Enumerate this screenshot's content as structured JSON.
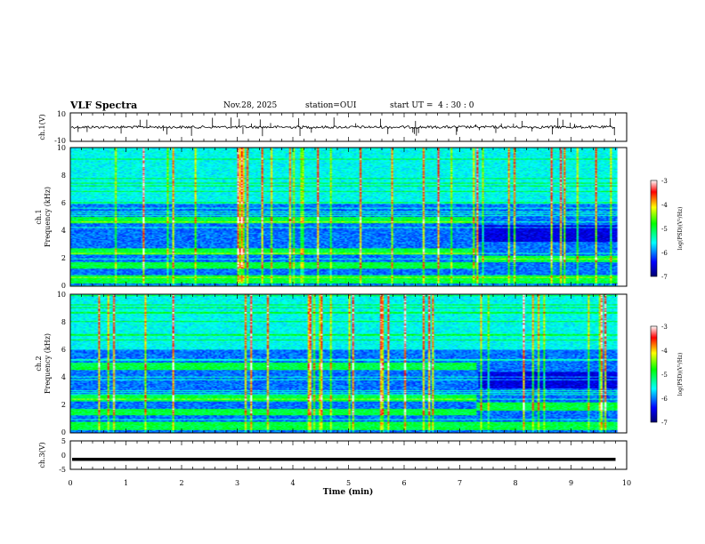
{
  "header": {
    "title": "VLF Spectra",
    "date": "Nov.28, 2025",
    "station": "station=OUI",
    "start_ut": "start UT =  4 : 30 : 0"
  },
  "chart_data": [
    {
      "type": "line",
      "id": "ch1_waveform",
      "ylabel": "ch.1(V)",
      "ylim": [
        -10,
        10
      ],
      "yticks": [
        "10",
        "-10"
      ],
      "baseline_value": 0
    },
    {
      "type": "heatmap",
      "id": "ch1_spectrum",
      "ylabel": "ch.1\nFrequency (kHz)",
      "ylim": [
        0,
        10
      ],
      "yticks": [
        "0",
        "2",
        "4",
        "6",
        "8",
        "10"
      ],
      "colorbar": {
        "label": "log(PSD)(V²/Hz)",
        "range": [
          -7,
          -3
        ],
        "ticks": [
          "-3",
          "-4",
          "-5",
          "-6",
          "-7"
        ]
      },
      "change_time_min": 7.3,
      "bands_before_kHz": [
        [
          0.2,
          0.8
        ],
        [
          1.3,
          1.8
        ],
        [
          2.3,
          2.8
        ],
        [
          4.6,
          5.0
        ]
      ],
      "bands_after_kHz": [
        [
          0.2,
          0.8
        ],
        [
          1.8,
          2.2
        ]
      ]
    },
    {
      "type": "heatmap",
      "id": "ch2_spectrum",
      "ylabel": "ch.2\nFrequency (kHz)",
      "ylim": [
        0,
        10
      ],
      "yticks": [
        "0",
        "2",
        "4",
        "6",
        "8",
        "10"
      ],
      "colorbar": {
        "label": "log(PSD)(V²/Hz)",
        "range": [
          -7,
          -3
        ],
        "ticks": [
          "-3",
          "-4",
          "-5",
          "-6",
          "-7"
        ]
      },
      "change_time_min": 7.3,
      "bands_before_kHz": [
        [
          0.2,
          0.8
        ],
        [
          1.3,
          1.8
        ],
        [
          2.3,
          2.8
        ],
        [
          4.6,
          5.1
        ]
      ],
      "bands_after_kHz": [
        [
          0.2,
          0.8
        ],
        [
          1.6,
          2.2
        ]
      ]
    },
    {
      "type": "line",
      "id": "ch3_waveform",
      "ylabel": "ch.3(V)",
      "ylim": [
        -5,
        5
      ],
      "yticks": [
        "5",
        "0",
        "-5"
      ],
      "baseline_value": -1.5
    }
  ],
  "xaxis": {
    "label": "Time (min)",
    "range": [
      0,
      10
    ],
    "ticks": [
      "0",
      "1",
      "2",
      "3",
      "4",
      "5",
      "6",
      "7",
      "8",
      "9",
      "10"
    ],
    "data_end_min": 9.8
  }
}
